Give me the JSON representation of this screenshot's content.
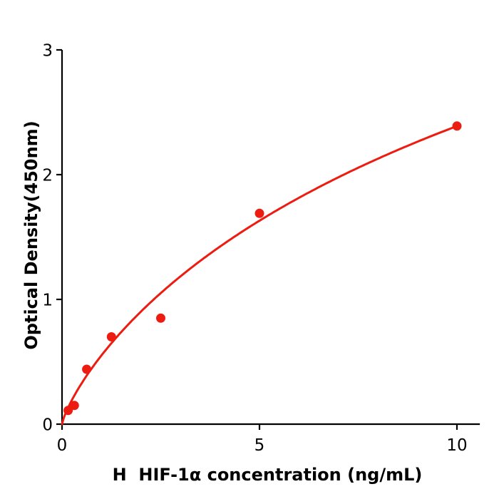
{
  "chart_data": {
    "type": "scatter",
    "title": "",
    "xlabel": "H  HIF-1α concentration (ng/mL)",
    "ylabel": "Optical Density(450nm)",
    "x": [
      0.156,
      0.313,
      0.625,
      1.25,
      2.5,
      5,
      10
    ],
    "y": [
      0.11,
      0.15,
      0.44,
      0.7,
      0.85,
      1.69,
      2.39
    ],
    "xticks": [
      0,
      5,
      10
    ],
    "xtick_labels": [
      "0",
      "5",
      "10"
    ],
    "yticks": [
      0,
      1,
      2,
      3
    ],
    "ytick_labels": [
      "0",
      "1",
      "2",
      "3"
    ],
    "xlim": [
      0,
      10.58
    ],
    "ylim": [
      0,
      3
    ],
    "grid": false,
    "legend": false,
    "marker_color": "#ed1c11",
    "line_color": "#ed1c11",
    "axis_color": "#000000",
    "fit_curve": {
      "type": "saturating-power",
      "formula": "y = d*x^b/(k + x^b)",
      "d": 6.41,
      "k": 10.62,
      "b": 0.8,
      "x_range": [
        0,
        10.02
      ]
    }
  }
}
